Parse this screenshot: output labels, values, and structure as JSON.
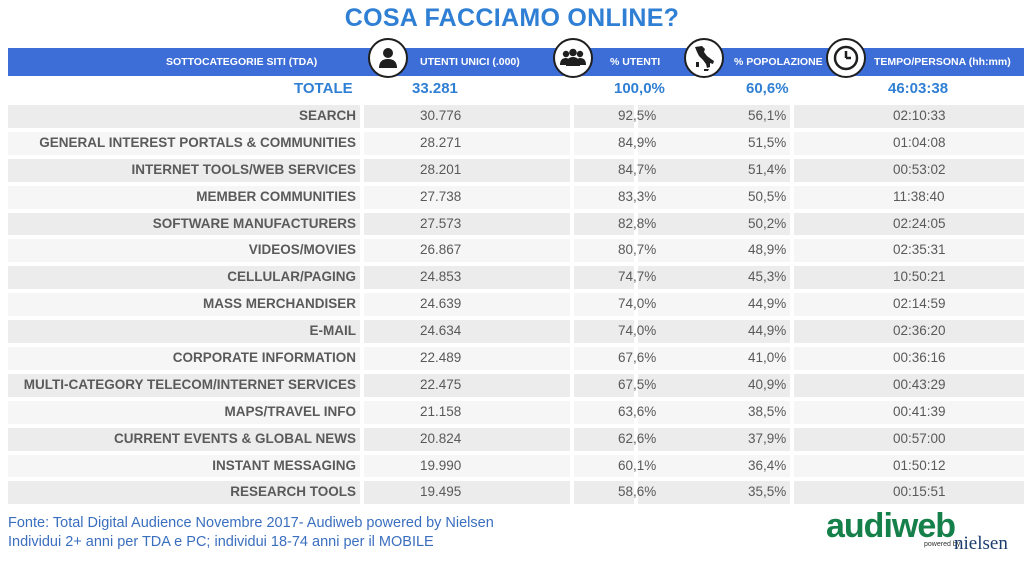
{
  "title": "COSA FACCIAMO ONLINE?",
  "header": {
    "col_name": "SOTTOCATEGORIE SITI  (TDA)",
    "col_users": "UTENTI UNICI (.000)",
    "col_pct_users": "% UTENTI",
    "col_pct_pop": "% POPOLAZIONE",
    "col_time": "TEMPO/PERSONA (hh:mm)"
  },
  "icons": [
    "person-icon",
    "group-icon",
    "italy-map-icon",
    "clock-icon"
  ],
  "total": {
    "label": "TOTALE",
    "users": "33.281",
    "pct_users": "100,0%",
    "pct_pop": "60,6%",
    "time": "46:03:38"
  },
  "rows": [
    {
      "name": "SEARCH",
      "users": "30.776",
      "pct_users": "92,5%",
      "pct_pop": "56,1%",
      "time": "02:10:33"
    },
    {
      "name": "GENERAL INTEREST PORTALS & COMMUNITIES",
      "users": "28.271",
      "pct_users": "84,9%",
      "pct_pop": "51,5%",
      "time": "01:04:08"
    },
    {
      "name": "INTERNET TOOLS/WEB SERVICES",
      "users": "28.201",
      "pct_users": "84,7%",
      "pct_pop": "51,4%",
      "time": "00:53:02"
    },
    {
      "name": "MEMBER COMMUNITIES",
      "users": "27.738",
      "pct_users": "83,3%",
      "pct_pop": "50,5%",
      "time": "11:38:40"
    },
    {
      "name": "SOFTWARE MANUFACTURERS",
      "users": "27.573",
      "pct_users": "82,8%",
      "pct_pop": "50,2%",
      "time": "02:24:05"
    },
    {
      "name": "VIDEOS/MOVIES",
      "users": "26.867",
      "pct_users": "80,7%",
      "pct_pop": "48,9%",
      "time": "02:35:31"
    },
    {
      "name": "CELLULAR/PAGING",
      "users": "24.853",
      "pct_users": "74,7%",
      "pct_pop": "45,3%",
      "time": "10:50:21"
    },
    {
      "name": "MASS MERCHANDISER",
      "users": "24.639",
      "pct_users": "74,0%",
      "pct_pop": "44,9%",
      "time": "02:14:59"
    },
    {
      "name": "E-MAIL",
      "users": "24.634",
      "pct_users": "74,0%",
      "pct_pop": "44,9%",
      "time": "02:36:20"
    },
    {
      "name": "CORPORATE INFORMATION",
      "users": "22.489",
      "pct_users": "67,6%",
      "pct_pop": "41,0%",
      "time": "00:36:16"
    },
    {
      "name": "MULTI-CATEGORY TELECOM/INTERNET SERVICES",
      "users": "22.475",
      "pct_users": "67,5%",
      "pct_pop": "40,9%",
      "time": "00:43:29"
    },
    {
      "name": "MAPS/TRAVEL INFO",
      "users": "21.158",
      "pct_users": "63,6%",
      "pct_pop": "38,5%",
      "time": "00:41:39"
    },
    {
      "name": "CURRENT EVENTS & GLOBAL NEWS",
      "users": "20.824",
      "pct_users": "62,6%",
      "pct_pop": "37,9%",
      "time": "00:57:00"
    },
    {
      "name": "INSTANT MESSAGING",
      "users": "19.990",
      "pct_users": "60,1%",
      "pct_pop": "36,4%",
      "time": "01:50:12"
    },
    {
      "name": "RESEARCH TOOLS",
      "users": "19.495",
      "pct_users": "58,6%",
      "pct_pop": "35,5%",
      "time": "00:15:51"
    }
  ],
  "footer": {
    "line1": "Fonte: Total Digital Audience Novembre 2017- Audiweb powered by Nielsen",
    "line2": "Individui 2+ anni per TDA e PC; individui 18-74 anni per il MOBILE"
  },
  "logo": {
    "main": "audiweb",
    "powered": "powered by",
    "nielsen": "nielsen"
  },
  "colors": {
    "header_bg": "#3d6ed8",
    "title": "#2f7fd4",
    "row_bg": "#ececec",
    "logo_green": "#16804a"
  }
}
